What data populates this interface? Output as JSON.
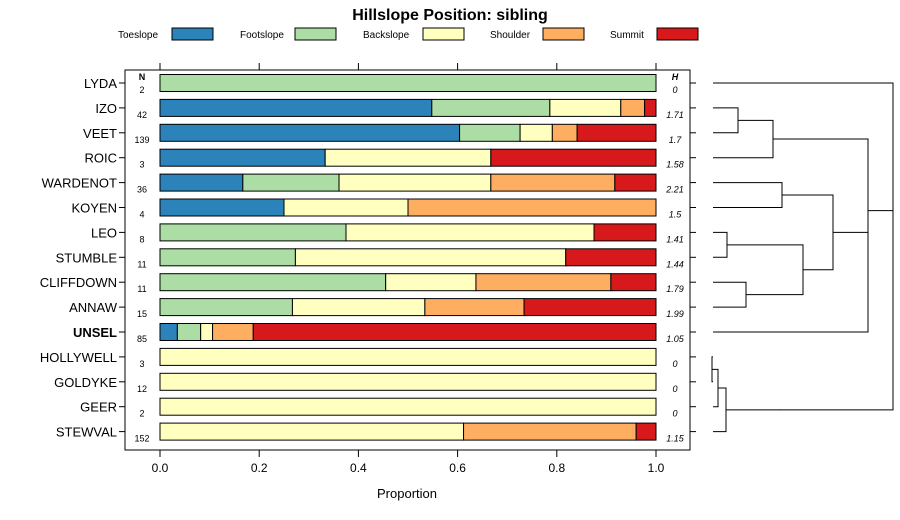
{
  "chart_data": {
    "type": "bar",
    "stacked": true,
    "orientation": "horizontal",
    "title": "Hillslope Position: sibling",
    "xlabel": "Proportion",
    "xlim": [
      0,
      1
    ],
    "xticks": [
      "0.0",
      "0.2",
      "0.4",
      "0.6",
      "0.8",
      "1.0"
    ],
    "legend_position": "top",
    "n_header": "N",
    "h_header": "H",
    "series": [
      {
        "name": "Toeslope",
        "color": "#2b83ba"
      },
      {
        "name": "Footslope",
        "color": "#abdda4"
      },
      {
        "name": "Backslope",
        "color": "#ffffbf"
      },
      {
        "name": "Shoulder",
        "color": "#fdae61"
      },
      {
        "name": "Summit",
        "color": "#d7191c"
      }
    ],
    "rows": [
      {
        "label": "LYDA",
        "n": "2",
        "h": "0",
        "bold": false,
        "values": [
          0,
          1,
          0,
          0,
          0
        ]
      },
      {
        "label": "IZO",
        "n": "42",
        "h": "1.71",
        "bold": false,
        "values": [
          0.548,
          0.238,
          0.143,
          0.048,
          0.023
        ]
      },
      {
        "label": "VEET",
        "n": "139",
        "h": "1.7",
        "bold": false,
        "values": [
          0.604,
          0.122,
          0.065,
          0.05,
          0.159
        ]
      },
      {
        "label": "ROIC",
        "n": "3",
        "h": "1.58",
        "bold": false,
        "values": [
          0.333,
          0,
          0.334,
          0,
          0.333
        ]
      },
      {
        "label": "WARDENOT",
        "n": "36",
        "h": "2.21",
        "bold": false,
        "values": [
          0.167,
          0.194,
          0.306,
          0.25,
          0.083
        ]
      },
      {
        "label": "KOYEN",
        "n": "4",
        "h": "1.5",
        "bold": false,
        "values": [
          0.25,
          0,
          0.25,
          0.5,
          0
        ]
      },
      {
        "label": "LEO",
        "n": "8",
        "h": "1.41",
        "bold": false,
        "values": [
          0,
          0.375,
          0.5,
          0,
          0.125
        ]
      },
      {
        "label": "STUMBLE",
        "n": "11",
        "h": "1.44",
        "bold": false,
        "values": [
          0,
          0.273,
          0.545,
          0,
          0.182
        ]
      },
      {
        "label": "CLIFFDOWN",
        "n": "11",
        "h": "1.79",
        "bold": false,
        "values": [
          0,
          0.455,
          0.182,
          0.272,
          0.091
        ]
      },
      {
        "label": "ANNAW",
        "n": "15",
        "h": "1.99",
        "bold": false,
        "values": [
          0,
          0.267,
          0.267,
          0.2,
          0.266
        ]
      },
      {
        "label": "UNSEL",
        "n": "85",
        "h": "1.05",
        "bold": true,
        "values": [
          0.035,
          0.047,
          0.024,
          0.082,
          0.812
        ]
      },
      {
        "label": "HOLLYWELL",
        "n": "3",
        "h": "0",
        "bold": false,
        "values": [
          0,
          0,
          1,
          0,
          0
        ]
      },
      {
        "label": "GOLDYKE",
        "n": "12",
        "h": "0",
        "bold": false,
        "values": [
          0,
          0,
          1,
          0,
          0
        ]
      },
      {
        "label": "GEER",
        "n": "2",
        "h": "0",
        "bold": false,
        "values": [
          0,
          0,
          1,
          0,
          0
        ]
      },
      {
        "label": "STEWVAL",
        "n": "152",
        "h": "1.15",
        "bold": false,
        "values": [
          0,
          0,
          0.612,
          0.348,
          0.04
        ]
      }
    ]
  }
}
